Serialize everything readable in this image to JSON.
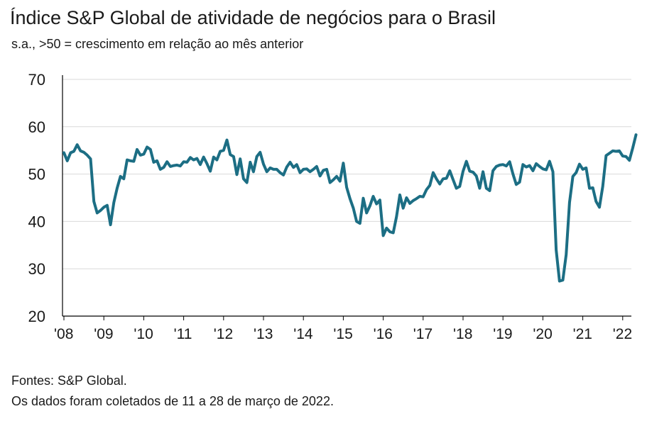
{
  "header": {
    "title": "Índice S&P Global de atividade de negócios para o Brasil",
    "subtitle": "s.a., >50 = crescimento em relação ao mês anterior"
  },
  "footer": {
    "source": "Fontes: S&P Global.",
    "note": "Os dados foram coletados de 11 a 28 de março de 2022."
  },
  "colors": {
    "line": "#1c6e84",
    "axis": "#000000",
    "grid": "#d9d9d9"
  },
  "chart_data": {
    "type": "line",
    "title": "Índice S&P Global de atividade de negócios para o Brasil",
    "xlabel": "",
    "ylabel": "",
    "ylim": [
      20,
      70
    ],
    "yticks": [
      20,
      30,
      40,
      50,
      60,
      70
    ],
    "xticklabels": [
      "'08",
      "'09",
      "'10",
      "'11",
      "'12",
      "'13",
      "'14",
      "'15",
      "'16",
      "'17",
      "'18",
      "'19",
      "'20",
      "'21",
      "'22"
    ],
    "grid": true,
    "series": [
      {
        "name": "Índice S&P Global de atividade de negócios",
        "x_start": "2008-01",
        "x_step": "month",
        "values": [
          54.5,
          52.8,
          54.5,
          54.8,
          56.2,
          54.9,
          54.6,
          54.0,
          53.2,
          44.2,
          41.8,
          42.3,
          43.0,
          43.4,
          39.3,
          44.0,
          47.0,
          49.5,
          49.0,
          53.0,
          52.8,
          52.7,
          55.2,
          54.0,
          54.2,
          55.7,
          55.2,
          52.5,
          52.8,
          51.0,
          51.4,
          52.6,
          51.6,
          51.8,
          51.9,
          51.7,
          52.6,
          52.5,
          53.5,
          53.0,
          53.3,
          52.0,
          53.6,
          52.2,
          50.6,
          53.6,
          53.0,
          54.8,
          55.0,
          57.2,
          54.1,
          53.7,
          49.9,
          53.2,
          49.0,
          48.2,
          52.5,
          50.5,
          53.7,
          54.6,
          52.1,
          50.5,
          51.3,
          51.0,
          51.0,
          50.3,
          49.8,
          51.5,
          52.5,
          51.4,
          52.0,
          50.3,
          51.0,
          51.1,
          50.5,
          51.0,
          51.6,
          49.6,
          50.8,
          51.0,
          48.2,
          48.8,
          49.5,
          48.5,
          52.3,
          47.2,
          44.8,
          42.8,
          40.0,
          39.6,
          44.9,
          41.8,
          43.3,
          45.3,
          43.7,
          44.5,
          37.0,
          38.6,
          37.8,
          37.6,
          41.0,
          45.6,
          42.8,
          45.0,
          43.8,
          44.4,
          44.8,
          45.3,
          45.2,
          46.7,
          47.6,
          50.3,
          49.0,
          47.9,
          49.0,
          49.1,
          50.7,
          48.8,
          47.0,
          47.4,
          50.6,
          52.7,
          50.6,
          50.4,
          49.6,
          47.0,
          50.5,
          47.0,
          46.5,
          50.7,
          51.6,
          51.9,
          52.0,
          51.7,
          52.6,
          50.0,
          47.8,
          48.3,
          52.0,
          51.5,
          51.8,
          50.7,
          52.2,
          51.6,
          51.1,
          50.9,
          52.7,
          50.5,
          34.0,
          27.4,
          27.6,
          33.0,
          44.0,
          49.5,
          50.3,
          52.1,
          51.0,
          51.3,
          47.0,
          47.1,
          44.2,
          43.0,
          47.4,
          53.9,
          54.4,
          54.9,
          54.8,
          54.9,
          53.8,
          53.7,
          52.9,
          55.5,
          58.3
        ]
      }
    ]
  }
}
